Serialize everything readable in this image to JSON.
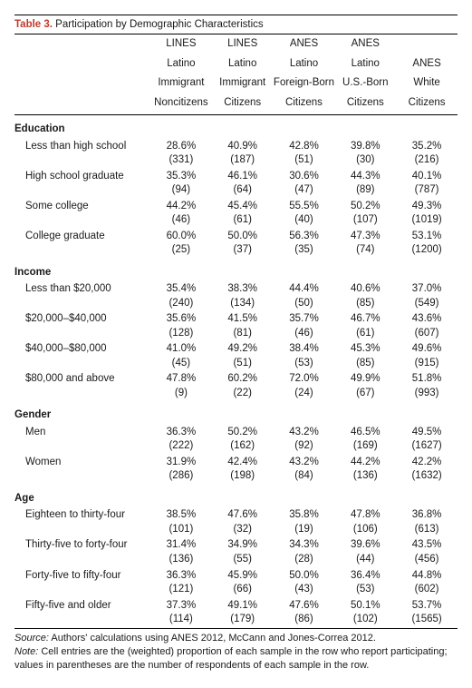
{
  "title_number": "Table 3.",
  "title_text": "Participation by Demographic Characteristics",
  "columns": [
    [
      "LINES",
      "Latino",
      "Immigrant",
      "Noncitizens"
    ],
    [
      "LINES",
      "Latino",
      "Immigrant",
      "Citizens"
    ],
    [
      "ANES",
      "Latino",
      "Foreign-Born",
      "Citizens"
    ],
    [
      "ANES",
      "Latino",
      "U.S.-Born",
      "Citizens"
    ],
    [
      "ANES",
      "White",
      "Citizens"
    ]
  ],
  "sections": [
    {
      "name": "Education",
      "rows": [
        {
          "label": "Less than high school",
          "pct": [
            "28.6%",
            "40.9%",
            "42.8%",
            "39.8%",
            "35.2%"
          ],
          "n": [
            "(331)",
            "(187)",
            "(51)",
            "(30)",
            "(216)"
          ]
        },
        {
          "label": "High school graduate",
          "pct": [
            "35.3%",
            "46.1%",
            "30.6%",
            "44.3%",
            "40.1%"
          ],
          "n": [
            "(94)",
            "(64)",
            "(47)",
            "(89)",
            "(787)"
          ]
        },
        {
          "label": "Some college",
          "pct": [
            "44.2%",
            "45.4%",
            "55.5%",
            "50.2%",
            "49.3%"
          ],
          "n": [
            "(46)",
            "(61)",
            "(40)",
            "(107)",
            "(1019)"
          ]
        },
        {
          "label": "College graduate",
          "pct": [
            "60.0%",
            "50.0%",
            "56.3%",
            "47.3%",
            "53.1%"
          ],
          "n": [
            "(25)",
            "(37)",
            "(35)",
            "(74)",
            "(1200)"
          ]
        }
      ]
    },
    {
      "name": "Income",
      "rows": [
        {
          "label": "Less than $20,000",
          "pct": [
            "35.4%",
            "38.3%",
            "44.4%",
            "40.6%",
            "37.0%"
          ],
          "n": [
            "(240)",
            "(134)",
            "(50)",
            "(85)",
            "(549)"
          ]
        },
        {
          "label": "$20,000–$40,000",
          "pct": [
            "35.6%",
            "41.5%",
            "35.7%",
            "46.7%",
            "43.6%"
          ],
          "n": [
            "(128)",
            "(81)",
            "(46)",
            "(61)",
            "(607)"
          ]
        },
        {
          "label": "$40,000–$80,000",
          "pct": [
            "41.0%",
            "49.2%",
            "38.4%",
            "45.3%",
            "49.6%"
          ],
          "n": [
            "(45)",
            "(51)",
            "(53)",
            "(85)",
            "(915)"
          ]
        },
        {
          "label": "$80,000 and above",
          "pct": [
            "47.8%",
            "60.2%",
            "72.0%",
            "49.9%",
            "51.8%"
          ],
          "n": [
            "(9)",
            "(22)",
            "(24)",
            "(67)",
            "(993)"
          ]
        }
      ]
    },
    {
      "name": "Gender",
      "rows": [
        {
          "label": "Men",
          "pct": [
            "36.3%",
            "50.2%",
            "43.2%",
            "46.5%",
            "49.5%"
          ],
          "n": [
            "(222)",
            "(162)",
            "(92)",
            "(169)",
            "(1627)"
          ]
        },
        {
          "label": "Women",
          "pct": [
            "31.9%",
            "42.4%",
            "43.2%",
            "44.2%",
            "42.2%"
          ],
          "n": [
            "(286)",
            "(198)",
            "(84)",
            "(136)",
            "(1632)"
          ]
        }
      ]
    },
    {
      "name": "Age",
      "rows": [
        {
          "label": "Eighteen to thirty-four",
          "pct": [
            "38.5%",
            "47.6%",
            "35.8%",
            "47.8%",
            "36.8%"
          ],
          "n": [
            "(101)",
            "(32)",
            "(19)",
            "(106)",
            "(613)"
          ]
        },
        {
          "label": "Thirty-five to forty-four",
          "pct": [
            "31.4%",
            "34.9%",
            "34.3%",
            "39.6%",
            "43.5%"
          ],
          "n": [
            "(136)",
            "(55)",
            "(28)",
            "(44)",
            "(456)"
          ]
        },
        {
          "label": "Forty-five to fifty-four",
          "pct": [
            "36.3%",
            "45.9%",
            "50.0%",
            "36.4%",
            "44.8%"
          ],
          "n": [
            "(121)",
            "(66)",
            "(43)",
            "(53)",
            "(602)"
          ]
        },
        {
          "label": "Fifty-five and older",
          "pct": [
            "37.3%",
            "49.1%",
            "47.6%",
            "50.1%",
            "53.7%"
          ],
          "n": [
            "(114)",
            "(179)",
            "(86)",
            "(102)",
            "(1565)"
          ]
        }
      ]
    }
  ],
  "source_label": "Source:",
  "source_text": "Authors' calculations using ANES 2012, McCann and Jones-Correa 2012.",
  "note_label": "Note:",
  "note_text": "Cell entries are the (weighted) proportion of each sample in the row who report participating; values in parentheses are the number of respondents of each sample in the row."
}
